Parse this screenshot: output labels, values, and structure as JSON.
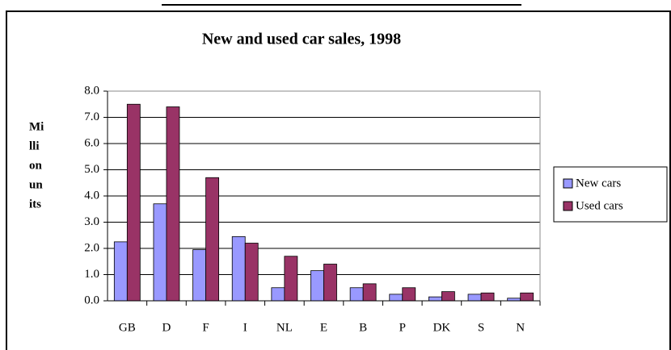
{
  "chart_data": {
    "type": "bar",
    "title": "New and used car sales, 1998",
    "ylabel_lines": [
      "Mi",
      "lli",
      "on",
      "un",
      "its"
    ],
    "categories": [
      "GB",
      "D",
      "F",
      "I",
      "NL",
      "E",
      "B",
      "P",
      "DK",
      "S",
      "N"
    ],
    "series": [
      {
        "name": "New cars",
        "color": "#9999ff",
        "values": [
          2.25,
          3.7,
          1.95,
          2.45,
          0.5,
          1.15,
          0.5,
          0.25,
          0.15,
          0.25,
          0.1
        ]
      },
      {
        "name": "Used cars",
        "color": "#993366",
        "values": [
          7.5,
          7.4,
          4.7,
          2.2,
          1.7,
          1.4,
          0.65,
          0.5,
          0.35,
          0.3,
          0.3
        ]
      }
    ],
    "ylim": [
      0,
      8
    ],
    "yticks": [
      {
        "value": 0,
        "label": "0.0"
      },
      {
        "value": 1,
        "label": "1.0"
      },
      {
        "value": 2,
        "label": "2.0"
      },
      {
        "value": 3,
        "label": "3.0"
      },
      {
        "value": 4,
        "label": "4.0"
      },
      {
        "value": 5,
        "label": "5.0"
      },
      {
        "value": 6,
        "label": "6.0"
      },
      {
        "value": 7,
        "label": "7.0"
      },
      {
        "value": 8,
        "label": "8.0"
      }
    ],
    "grid": true,
    "legend": "right"
  }
}
